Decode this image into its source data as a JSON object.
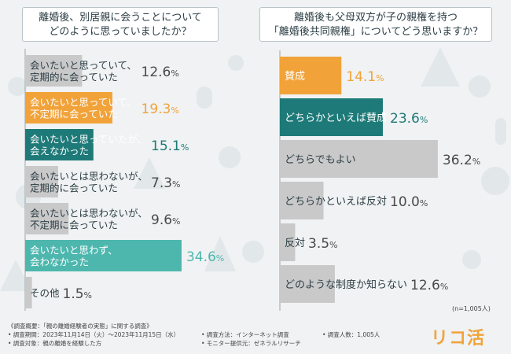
{
  "left_title": {
    "line1": "離婚後、別居親に会うことについて",
    "line2": "どのように思っていましたか？"
  },
  "right_title": {
    "line1": "離婚後も父母双方が子の親権を持つ",
    "line2": "「離婚後共同親権」についてどう思いますか？"
  },
  "colors": {
    "accent_orange": "#f1a33a",
    "accent_teal_dark": "#1e7a78",
    "accent_teal_light": "#4db7ae",
    "gray": "#c9c9c9",
    "text": "#2c3e45"
  },
  "chart_data": [
    {
      "type": "bar",
      "orientation": "horizontal",
      "title": "離婚後、別居親に会うことについてどのように思っていましたか？",
      "categories": [
        [
          "会いたいと思っていて、",
          "定期的に会っていた"
        ],
        [
          "会いたいと思っていて、",
          "不定期に会っていた"
        ],
        [
          "会いたいと思っていたが、",
          "会えなかった"
        ],
        [
          "会いたいとは思わないが、",
          "定期的に会っていた"
        ],
        [
          "会いたいとは思わないが、",
          "不定期に会っていた"
        ],
        [
          "会いたいと思わず、",
          "会わなかった"
        ],
        [
          "その他"
        ]
      ],
      "values": [
        12.6,
        19.3,
        15.1,
        7.3,
        9.6,
        34.6,
        1.5
      ],
      "unit": "%",
      "styles": [
        "gray",
        "orange",
        "teal-dark",
        "gray",
        "gray",
        "teal-light",
        "gray"
      ],
      "xlim": [
        0,
        40
      ]
    },
    {
      "type": "bar",
      "orientation": "horizontal",
      "title": "離婚後も父母双方が子の親権を持つ「離婚後共同親権」についてどう思いますか？",
      "categories": [
        [
          "賛成"
        ],
        [
          "どちらかといえば賛成"
        ],
        [
          "どちらでもよい"
        ],
        [
          "どちらかといえば反対"
        ],
        [
          "反対"
        ],
        [
          "どのような制度か知らない"
        ]
      ],
      "values": [
        14.1,
        23.6,
        36.2,
        10.0,
        3.5,
        12.6
      ],
      "unit": "%",
      "styles": [
        "orange",
        "teal-dark",
        "gray",
        "gray",
        "gray",
        "gray"
      ],
      "xlim": [
        0,
        40
      ]
    }
  ],
  "sample_size": "(n=1,005人)",
  "footnotes": {
    "overview": "《調査概要：「親の離婚経験者の実態」に関する調査》",
    "period": "• 調査期間：2023年11月14日（火）～2023年11月15日（水）",
    "subject": "• 調査対象：親の離婚を経験した方",
    "method": "• 調査方法：インターネット調査",
    "provider": "• モニター提供元：ゼネラルリサーチ",
    "count": "• 調査人数：1,005人"
  },
  "logo": "リコ活"
}
